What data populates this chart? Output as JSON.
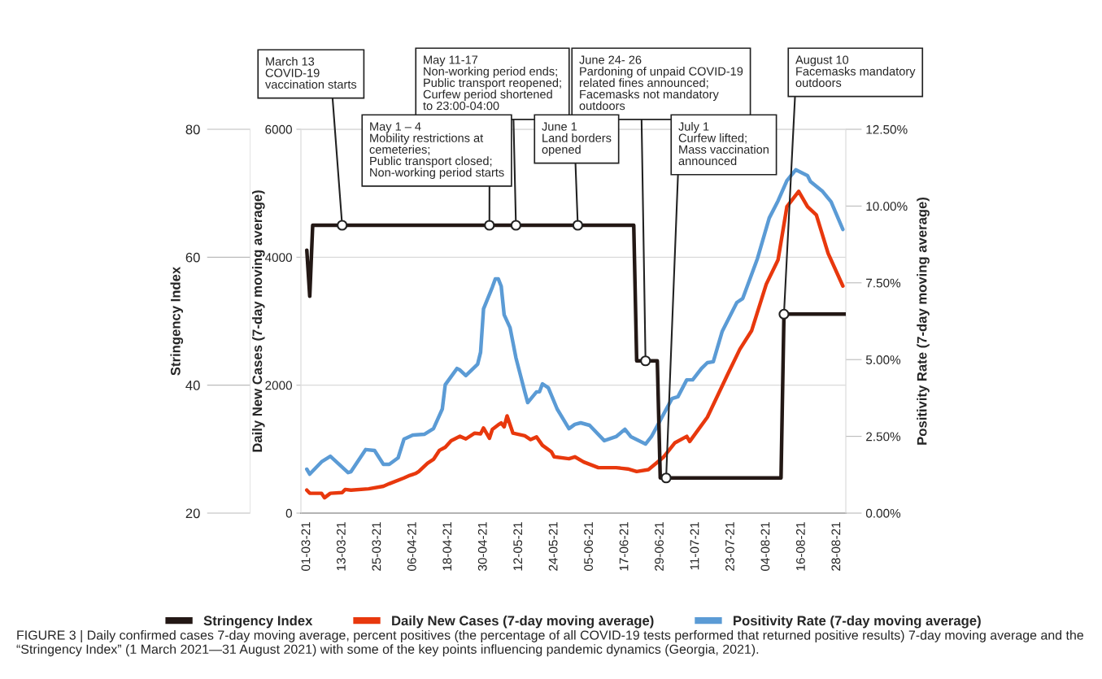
{
  "chart_data": {
    "type": "line",
    "xlabel": null,
    "ylabel": "Stringency Index",
    "y2label": "Daily New Cases (7-day moving average)",
    "y3label": "Positivity Rate (7-day moving average)",
    "xlim": [
      "2021-02-27",
      "2021-08-31"
    ],
    "xticks": [
      {
        "value": "2021-03-01",
        "label": "01-03-21"
      },
      {
        "value": "2021-03-13",
        "label": "13-03-21"
      },
      {
        "value": "2021-03-25",
        "label": "25-03-21"
      },
      {
        "value": "2021-04-06",
        "label": "06-04-21"
      },
      {
        "value": "2021-04-18",
        "label": "18-04-21"
      },
      {
        "value": "2021-04-30",
        "label": "30-04-21"
      },
      {
        "value": "2021-05-12",
        "label": "12-05-21"
      },
      {
        "value": "2021-05-24",
        "label": "24-05-21"
      },
      {
        "value": "2021-06-05",
        "label": "05-06-21"
      },
      {
        "value": "2021-06-17",
        "label": "17-06-21"
      },
      {
        "value": "2021-06-29",
        "label": "29-06-21"
      },
      {
        "value": "2021-07-11",
        "label": "11-07-21"
      },
      {
        "value": "2021-07-23",
        "label": "23-07-21"
      },
      {
        "value": "2021-08-04",
        "label": "04-08-21"
      },
      {
        "value": "2021-08-16",
        "label": "16-08-21"
      },
      {
        "value": "2021-08-28",
        "label": "28-08-21"
      }
    ],
    "ylim": [
      20,
      80
    ],
    "yticks": [
      20,
      40,
      60,
      80
    ],
    "y2lim": [
      0,
      6000
    ],
    "y2ticks": [
      0,
      2000,
      4000,
      6000
    ],
    "y3lim": [
      0,
      12.5
    ],
    "y3ticks": [
      {
        "value": 0,
        "label": "0.00%"
      },
      {
        "value": 2.5,
        "label": "2.50%"
      },
      {
        "value": 5,
        "label": "5.00%"
      },
      {
        "value": 7.5,
        "label": "7.50%"
      },
      {
        "value": 10,
        "label": "10.00%"
      },
      {
        "value": 12.5,
        "label": "12.50%"
      }
    ],
    "grid": "y",
    "legend": "bottom",
    "series": [
      {
        "name": "Stringency Index",
        "color": "#231815",
        "axis": "y",
        "x": [
          "2021-03-01",
          "2021-03-02",
          "2021-03-03",
          "2021-06-20",
          "2021-06-21",
          "2021-06-28",
          "2021-06-29",
          "2021-08-09",
          "2021-08-10",
          "2021-08-31"
        ],
        "values": [
          61.1,
          53.9,
          65,
          65,
          43.8,
          43.8,
          25.5,
          25.5,
          51.1,
          51.1
        ]
      },
      {
        "name": "Daily New Cases (7-day moving average)",
        "color": "#e8380d",
        "axis": "y2",
        "x": [
          "2021-03-01",
          "2021-03-02",
          "2021-03-06",
          "2021-03-07",
          "2021-03-09",
          "2021-03-13",
          "2021-03-14",
          "2021-03-16",
          "2021-03-22",
          "2021-03-27",
          "2021-03-29",
          "2021-04-03",
          "2021-04-05",
          "2021-04-07",
          "2021-04-08",
          "2021-04-11",
          "2021-04-13",
          "2021-04-15",
          "2021-04-17",
          "2021-04-19",
          "2021-04-22",
          "2021-04-24",
          "2021-04-27",
          "2021-04-29",
          "2021-04-30",
          "2021-05-02",
          "2021-05-03",
          "2021-05-05",
          "2021-05-06",
          "2021-05-07",
          "2021-05-08",
          "2021-05-10",
          "2021-05-14",
          "2021-05-16",
          "2021-05-18",
          "2021-05-20",
          "2021-05-23",
          "2021-05-24",
          "2021-05-29",
          "2021-05-31",
          "2021-06-03",
          "2021-06-08",
          "2021-06-14",
          "2021-06-18",
          "2021-06-21",
          "2021-06-25",
          "2021-06-30",
          "2021-07-04",
          "2021-07-08",
          "2021-07-09",
          "2021-07-15",
          "2021-07-22",
          "2021-07-26",
          "2021-07-30",
          "2021-08-04",
          "2021-08-08",
          "2021-08-11",
          "2021-08-15",
          "2021-08-18",
          "2021-08-21",
          "2021-08-25",
          "2021-08-30"
        ],
        "values": [
          360,
          310,
          310,
          240,
          310,
          320,
          370,
          360,
          380,
          420,
          460,
          550,
          590,
          620,
          650,
          780,
          840,
          980,
          1030,
          1130,
          1200,
          1160,
          1250,
          1240,
          1330,
          1170,
          1310,
          1380,
          1410,
          1350,
          1520,
          1250,
          1210,
          1150,
          1190,
          1060,
          960,
          880,
          850,
          880,
          800,
          710,
          710,
          690,
          650,
          680,
          870,
          1100,
          1200,
          1120,
          1500,
          2180,
          2560,
          2850,
          3580,
          3960,
          4790,
          5030,
          4790,
          4660,
          4060,
          3550
        ]
      },
      {
        "name": "Positivity Rate (7-day moving average)",
        "color": "#5b9bd5",
        "axis": "y3",
        "x": [
          "2021-03-01",
          "2021-03-02",
          "2021-03-06",
          "2021-03-09",
          "2021-03-15",
          "2021-03-16",
          "2021-03-21",
          "2021-03-24",
          "2021-03-27",
          "2021-03-29",
          "2021-04-01",
          "2021-04-03",
          "2021-04-06",
          "2021-04-10",
          "2021-04-13",
          "2021-04-16",
          "2021-04-17",
          "2021-04-21",
          "2021-04-22",
          "2021-04-24",
          "2021-04-28",
          "2021-04-29",
          "2021-04-30",
          "2021-05-03",
          "2021-05-04",
          "2021-05-05",
          "2021-05-06",
          "2021-05-07",
          "2021-05-09",
          "2021-05-11",
          "2021-05-14",
          "2021-05-15",
          "2021-05-18",
          "2021-05-19",
          "2021-05-20",
          "2021-05-22",
          "2021-05-25",
          "2021-05-29",
          "2021-05-31",
          "2021-06-02",
          "2021-06-05",
          "2021-06-10",
          "2021-06-14",
          "2021-06-17",
          "2021-06-19",
          "2021-06-24",
          "2021-06-26",
          "2021-07-03",
          "2021-07-05",
          "2021-07-08",
          "2021-07-10",
          "2021-07-13",
          "2021-07-15",
          "2021-07-17",
          "2021-07-20",
          "2021-07-25",
          "2021-07-27",
          "2021-08-01",
          "2021-08-05",
          "2021-08-08",
          "2021-08-11",
          "2021-08-14",
          "2021-08-18",
          "2021-08-19",
          "2021-08-23",
          "2021-08-26",
          "2021-08-30"
        ],
        "values": [
          1.43,
          1.27,
          1.67,
          1.85,
          1.32,
          1.35,
          2.07,
          2.04,
          1.59,
          1.59,
          1.8,
          2.41,
          2.54,
          2.57,
          2.75,
          3.39,
          4.18,
          4.71,
          4.66,
          4.48,
          4.85,
          5.24,
          6.65,
          7.36,
          7.63,
          7.63,
          7.39,
          6.46,
          6.04,
          5.06,
          3.95,
          3.6,
          3.95,
          3.95,
          4.21,
          4.08,
          3.39,
          2.75,
          2.89,
          2.94,
          2.86,
          2.36,
          2.49,
          2.73,
          2.49,
          2.25,
          2.49,
          3.73,
          3.79,
          4.34,
          4.34,
          4.71,
          4.9,
          4.93,
          5.91,
          6.86,
          6.99,
          8.29,
          9.61,
          10.17,
          10.83,
          11.18,
          10.99,
          10.8,
          10.49,
          10.14,
          9.24
        ]
      }
    ],
    "annotations": [
      {
        "text": "March 13\nCOVID-19\nvaccination starts",
        "x": "2021-03-13",
        "y": 65
      },
      {
        "text": "May 1 – 4\nMobility restrictions at\ncemeteries;\nPublic transport closed;\nNon-working period starts",
        "x": "2021-05-02",
        "y": 65
      },
      {
        "text": "May 11-17\nNon-working period ends;\nPublic transport reopened;\nCurfew period shortened\nto 23:00-04:00",
        "x": "2021-05-11",
        "y": 65
      },
      {
        "text": "June 1\nLand borders\nopened",
        "x": "2021-06-01",
        "y": 65
      },
      {
        "text": "June 24- 26\nPardoning of unpaid COVID-19\nrelated fines announced;\nFacemasks not mandatory\noutdoors",
        "x": "2021-06-24",
        "y": 43.8
      },
      {
        "text": "July 1\nCurfew lifted;\nMass vaccination\nannounced",
        "x": "2021-07-01",
        "y": 25.5
      },
      {
        "text": "August 10\nFacemasks mandatory\noutdoors",
        "x": "2021-08-10",
        "y": 51.1
      },
      "FIGURE 3 | Daily confirmed cases 7-day moving average, percent positives (the percentage of all COVID-19 tests performed that returned positive results) 7-day moving average and the “Stringency Index” (1 March 2021—31 August 2021) with some of the key points influencing pandemic dynamics (Georgia, 2021)."
    ]
  }
}
